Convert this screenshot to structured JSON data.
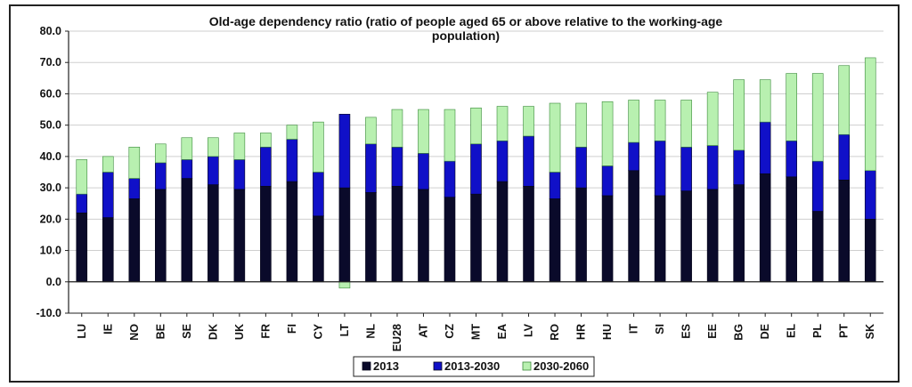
{
  "chart_data": {
    "type": "bar",
    "stacked": true,
    "title_line1": "Old-age dependency ratio (ratio of people aged 65 or above relative to the working-age",
    "title_line2": "population)",
    "xlabel": "",
    "ylabel": "",
    "ylim": [
      -10,
      80
    ],
    "yticks": [
      "-10.0",
      "0.0",
      "10.0",
      "20.0",
      "30.0",
      "40.0",
      "50.0",
      "60.0",
      "70.0",
      "80.0"
    ],
    "grid": true,
    "legend_position": "bottom",
    "categories": [
      "LU",
      "IE",
      "NO",
      "BE",
      "SE",
      "DK",
      "UK",
      "FR",
      "FI",
      "CY",
      "LT",
      "NL",
      "EU28",
      "AT",
      "CZ",
      "MT",
      "EA",
      "LV",
      "RO",
      "HR",
      "HU",
      "IT",
      "SI",
      "ES",
      "EE",
      "BG",
      "DE",
      "EL",
      "PL",
      "PT",
      "SK"
    ],
    "series": [
      {
        "name": "2013",
        "color": "#0a0a2a",
        "values": [
          22.0,
          20.5,
          26.5,
          29.5,
          33.0,
          31.0,
          29.5,
          30.5,
          32.0,
          21.0,
          30.0,
          28.5,
          30.5,
          29.5,
          27.0,
          28.0,
          32.0,
          30.5,
          26.5,
          30.0,
          27.5,
          35.5,
          27.5,
          29.0,
          29.5,
          31.0,
          34.5,
          33.5,
          22.5,
          32.5,
          20.0
        ]
      },
      {
        "name": "2013-2030",
        "color": "#1010c8",
        "values": [
          6.0,
          14.5,
          6.5,
          8.5,
          6.0,
          9.0,
          9.5,
          12.5,
          13.5,
          14.0,
          23.5,
          15.5,
          12.5,
          11.5,
          11.5,
          16.0,
          13.0,
          16.0,
          8.5,
          13.0,
          9.5,
          9.0,
          17.5,
          14.0,
          14.0,
          11.0,
          16.5,
          11.5,
          16.0,
          14.5,
          15.5
        ]
      },
      {
        "name": "2030-2060",
        "color": "#b8f0b0",
        "values": [
          11.0,
          5.0,
          10.0,
          6.0,
          7.0,
          6.0,
          8.5,
          4.5,
          4.5,
          16.0,
          -2.0,
          8.5,
          12.0,
          14.0,
          16.5,
          11.5,
          11.0,
          9.5,
          22.0,
          14.0,
          20.5,
          13.5,
          13.0,
          15.0,
          17.0,
          22.5,
          13.5,
          21.5,
          28.0,
          22.0,
          36.0
        ]
      }
    ]
  }
}
